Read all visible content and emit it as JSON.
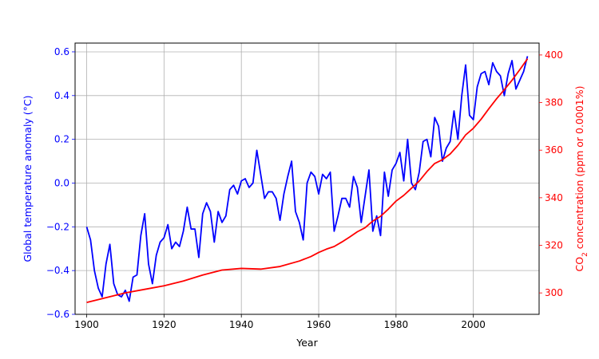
{
  "chart_data": {
    "type": "line",
    "xlabel": "Year",
    "ylabel_left": "Global temperature anomaly (°C)",
    "ylabel_right_prefix": "CO",
    "ylabel_right_sub": "2",
    "ylabel_right_suffix": " concentration (ppm or 0.0001%)",
    "xlim": [
      1897,
      2017
    ],
    "ylim_left": [
      -0.6,
      0.64
    ],
    "ylim_right": [
      291,
      405
    ],
    "x_ticks": [
      1900,
      1920,
      1940,
      1960,
      1980,
      2000
    ],
    "y_ticks_left": [
      -0.6,
      -0.4,
      -0.2,
      0.0,
      0.2,
      0.4,
      0.6
    ],
    "y_ticks_left_labels": [
      "−0.6",
      "−0.4",
      "−0.2",
      "0.0",
      "0.2",
      "0.4",
      "0.6"
    ],
    "y_ticks_right": [
      300,
      320,
      340,
      360,
      380,
      400
    ],
    "y_ticks_right_labels": [
      "300",
      "320",
      "340",
      "360",
      "380",
      "400"
    ],
    "grid": true,
    "colors": {
      "left_axis": "#0000ff",
      "right_axis": "#ff0000",
      "grid": "#b0b0b0"
    },
    "series": [
      {
        "axis": "left",
        "color": "#0000ff",
        "x": [
          1900,
          1901,
          1902,
          1903,
          1904,
          1905,
          1906,
          1907,
          1908,
          1909,
          1910,
          1911,
          1912,
          1913,
          1914,
          1915,
          1916,
          1917,
          1918,
          1919,
          1920,
          1921,
          1922,
          1923,
          1924,
          1925,
          1926,
          1927,
          1928,
          1929,
          1930,
          1931,
          1932,
          1933,
          1934,
          1935,
          1936,
          1937,
          1938,
          1939,
          1940,
          1941,
          1942,
          1943,
          1944,
          1945,
          1946,
          1947,
          1948,
          1949,
          1950,
          1951,
          1952,
          1953,
          1954,
          1955,
          1956,
          1957,
          1958,
          1959,
          1960,
          1961,
          1962,
          1963,
          1964,
          1965,
          1966,
          1967,
          1968,
          1969,
          1970,
          1971,
          1972,
          1973,
          1974,
          1975,
          1976,
          1977,
          1978,
          1979,
          1980,
          1981,
          1982,
          1983,
          1984,
          1985,
          1986,
          1987,
          1988,
          1989,
          1990,
          1991,
          1992,
          1993,
          1994,
          1995,
          1996,
          1997,
          1998,
          1999,
          2000,
          2001,
          2002,
          2003,
          2004,
          2005,
          2006,
          2007,
          2008,
          2009,
          2010,
          2011,
          2012,
          2013,
          2014
        ],
        "y": [
          -0.2,
          -0.26,
          -0.4,
          -0.48,
          -0.52,
          -0.37,
          -0.28,
          -0.46,
          -0.51,
          -0.52,
          -0.49,
          -0.54,
          -0.43,
          -0.42,
          -0.24,
          -0.14,
          -0.37,
          -0.46,
          -0.33,
          -0.27,
          -0.25,
          -0.19,
          -0.3,
          -0.27,
          -0.29,
          -0.22,
          -0.11,
          -0.21,
          -0.21,
          -0.34,
          -0.14,
          -0.09,
          -0.13,
          -0.27,
          -0.13,
          -0.18,
          -0.15,
          -0.03,
          -0.01,
          -0.05,
          0.01,
          0.02,
          -0.02,
          0.0,
          0.15,
          0.04,
          -0.07,
          -0.04,
          -0.04,
          -0.07,
          -0.17,
          -0.05,
          0.03,
          0.1,
          -0.13,
          -0.18,
          -0.26,
          0.0,
          0.05,
          0.03,
          -0.05,
          0.04,
          0.02,
          0.05,
          -0.22,
          -0.15,
          -0.07,
          -0.07,
          -0.11,
          0.03,
          -0.02,
          -0.18,
          -0.06,
          0.06,
          -0.22,
          -0.15,
          -0.24,
          0.05,
          -0.06,
          0.06,
          0.09,
          0.14,
          0.01,
          0.2,
          0.0,
          -0.03,
          0.05,
          0.19,
          0.2,
          0.12,
          0.3,
          0.26,
          0.1,
          0.16,
          0.19,
          0.33,
          0.2,
          0.4,
          0.54,
          0.31,
          0.29,
          0.44,
          0.5,
          0.51,
          0.45,
          0.55,
          0.51,
          0.49,
          0.4,
          0.5,
          0.56,
          0.43,
          0.47,
          0.51,
          0.58
        ]
      },
      {
        "axis": "right",
        "color": "#ff0000",
        "x": [
          1900,
          1905,
          1910,
          1915,
          1920,
          1925,
          1930,
          1935,
          1940,
          1945,
          1950,
          1955,
          1958,
          1960,
          1962,
          1964,
          1966,
          1968,
          1970,
          1972,
          1974,
          1976,
          1978,
          1980,
          1982,
          1984,
          1986,
          1988,
          1990,
          1992,
          1994,
          1996,
          1998,
          2000,
          2002,
          2004,
          2006,
          2008,
          2010,
          2012,
          2014
        ],
        "y": [
          296.0,
          298.0,
          300.0,
          301.5,
          303.0,
          305.0,
          307.5,
          309.6,
          310.3,
          310.0,
          311.1,
          313.4,
          315.3,
          317.0,
          318.4,
          319.5,
          321.4,
          323.5,
          325.7,
          327.4,
          330.2,
          332.2,
          335.2,
          338.6,
          341.0,
          344.0,
          347.0,
          351.0,
          354.4,
          356.0,
          358.4,
          362.0,
          366.4,
          369.2,
          373.0,
          377.4,
          381.6,
          385.4,
          389.4,
          393.8,
          398.4
        ]
      }
    ]
  }
}
